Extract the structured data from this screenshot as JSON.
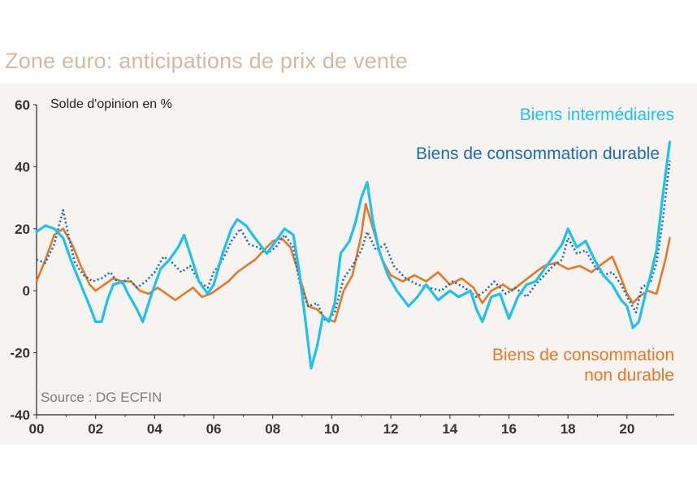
{
  "title": "Zone euro: anticipations de prix de vente",
  "ylabel": "Solde d'opinion en %",
  "source": "Source : DG ECFIN",
  "labels": {
    "intermediaires": "Biens intermédiaires",
    "durable": "Biens de consommation durable",
    "non_durable_line1": "Biens de consommation",
    "non_durable_line2": "non durable"
  },
  "colors": {
    "intermediaires": "#1ec2ee",
    "durable": "#1a6cb8",
    "non_durable": "#e4792a",
    "title": "#d7b8a0",
    "panel": "#f7f3f0"
  },
  "chart_data": {
    "type": "line",
    "title": "Zone euro: anticipations de prix de vente",
    "ylabel": "Solde d'opinion en %",
    "xlabel": "",
    "xlim": [
      2000,
      2021.6
    ],
    "ylim": [
      -40,
      60
    ],
    "xticks": [
      "00",
      "02",
      "04",
      "06",
      "08",
      "10",
      "12",
      "14",
      "16",
      "18",
      "20"
    ],
    "yticks": [
      "60",
      "40",
      "20",
      "0",
      "-20",
      "-40"
    ],
    "series": [
      {
        "name": "Biens intermédiaires",
        "style": "solid",
        "points": [
          [
            2000.0,
            19
          ],
          [
            2000.3,
            21
          ],
          [
            2000.6,
            20
          ],
          [
            2000.9,
            17
          ],
          [
            2001.2,
            9
          ],
          [
            2001.5,
            2
          ],
          [
            2001.8,
            -5
          ],
          [
            2002.0,
            -10
          ],
          [
            2002.2,
            -10
          ],
          [
            2002.4,
            -3
          ],
          [
            2002.6,
            2
          ],
          [
            2002.9,
            3
          ],
          [
            2003.1,
            -1
          ],
          [
            2003.4,
            -6
          ],
          [
            2003.6,
            -10
          ],
          [
            2003.9,
            -1
          ],
          [
            2004.2,
            7
          ],
          [
            2004.5,
            10
          ],
          [
            2004.8,
            14
          ],
          [
            2005.0,
            18
          ],
          [
            2005.2,
            12
          ],
          [
            2005.5,
            3
          ],
          [
            2005.8,
            -1
          ],
          [
            2006.0,
            2
          ],
          [
            2006.3,
            12
          ],
          [
            2006.6,
            20
          ],
          [
            2006.8,
            23
          ],
          [
            2007.1,
            21
          ],
          [
            2007.4,
            17
          ],
          [
            2007.8,
            12
          ],
          [
            2008.1,
            16
          ],
          [
            2008.4,
            20
          ],
          [
            2008.7,
            18
          ],
          [
            2008.9,
            6
          ],
          [
            2009.1,
            -9
          ],
          [
            2009.3,
            -25
          ],
          [
            2009.5,
            -18
          ],
          [
            2009.7,
            -8
          ],
          [
            2009.9,
            -10
          ],
          [
            2010.1,
            -4
          ],
          [
            2010.3,
            12
          ],
          [
            2010.6,
            16
          ],
          [
            2010.8,
            22
          ],
          [
            2011.0,
            30
          ],
          [
            2011.2,
            35
          ],
          [
            2011.4,
            22
          ],
          [
            2011.6,
            13
          ],
          [
            2011.9,
            5
          ],
          [
            2012.2,
            0
          ],
          [
            2012.6,
            -5
          ],
          [
            2012.9,
            -2
          ],
          [
            2013.2,
            2
          ],
          [
            2013.6,
            -3
          ],
          [
            2014.0,
            0
          ],
          [
            2014.3,
            -2
          ],
          [
            2014.7,
            0
          ],
          [
            2014.9,
            -6
          ],
          [
            2015.1,
            -10
          ],
          [
            2015.4,
            -2
          ],
          [
            2015.7,
            -1
          ],
          [
            2016.0,
            -9
          ],
          [
            2016.3,
            -2
          ],
          [
            2016.6,
            2
          ],
          [
            2016.9,
            3
          ],
          [
            2017.2,
            7
          ],
          [
            2017.5,
            11
          ],
          [
            2017.8,
            15
          ],
          [
            2018.0,
            20
          ],
          [
            2018.3,
            14
          ],
          [
            2018.6,
            16
          ],
          [
            2018.9,
            10
          ],
          [
            2019.2,
            5
          ],
          [
            2019.5,
            2
          ],
          [
            2019.8,
            -3
          ],
          [
            2020.0,
            -5
          ],
          [
            2020.2,
            -12
          ],
          [
            2020.4,
            -10
          ],
          [
            2020.6,
            -2
          ],
          [
            2020.8,
            5
          ],
          [
            2021.0,
            13
          ],
          [
            2021.2,
            30
          ],
          [
            2021.45,
            48
          ]
        ]
      },
      {
        "name": "Biens de consommation durable",
        "style": "dotted",
        "points": [
          [
            2000.0,
            10
          ],
          [
            2000.3,
            9
          ],
          [
            2000.6,
            15
          ],
          [
            2000.9,
            26
          ],
          [
            2001.1,
            17
          ],
          [
            2001.3,
            9
          ],
          [
            2001.6,
            5
          ],
          [
            2001.9,
            3
          ],
          [
            2002.2,
            4
          ],
          [
            2002.5,
            6
          ],
          [
            2002.8,
            2
          ],
          [
            2003.1,
            4
          ],
          [
            2003.4,
            1
          ],
          [
            2003.7,
            3
          ],
          [
            2004.0,
            6
          ],
          [
            2004.3,
            11
          ],
          [
            2004.6,
            9
          ],
          [
            2004.9,
            6
          ],
          [
            2005.2,
            8
          ],
          [
            2005.5,
            3
          ],
          [
            2005.8,
            1
          ],
          [
            2006.0,
            6
          ],
          [
            2006.3,
            10
          ],
          [
            2006.6,
            16
          ],
          [
            2006.9,
            20
          ],
          [
            2007.2,
            15
          ],
          [
            2007.5,
            14
          ],
          [
            2007.8,
            12
          ],
          [
            2008.1,
            14
          ],
          [
            2008.4,
            18
          ],
          [
            2008.7,
            14
          ],
          [
            2008.9,
            3
          ],
          [
            2009.2,
            -5
          ],
          [
            2009.5,
            -4
          ],
          [
            2009.8,
            -10
          ],
          [
            2010.1,
            -7
          ],
          [
            2010.4,
            4
          ],
          [
            2010.7,
            8
          ],
          [
            2011.0,
            13
          ],
          [
            2011.2,
            19
          ],
          [
            2011.5,
            13
          ],
          [
            2011.8,
            15
          ],
          [
            2012.1,
            8
          ],
          [
            2012.5,
            4
          ],
          [
            2012.9,
            2
          ],
          [
            2013.3,
            1
          ],
          [
            2013.7,
            0
          ],
          [
            2014.1,
            3
          ],
          [
            2014.5,
            1
          ],
          [
            2014.9,
            -2
          ],
          [
            2015.2,
            0
          ],
          [
            2015.5,
            3
          ],
          [
            2015.9,
            -1
          ],
          [
            2016.2,
            1
          ],
          [
            2016.6,
            -2
          ],
          [
            2016.9,
            2
          ],
          [
            2017.2,
            5
          ],
          [
            2017.5,
            8
          ],
          [
            2017.8,
            10
          ],
          [
            2018.0,
            17
          ],
          [
            2018.3,
            12
          ],
          [
            2018.6,
            13
          ],
          [
            2018.9,
            8
          ],
          [
            2019.2,
            5
          ],
          [
            2019.5,
            6
          ],
          [
            2019.8,
            2
          ],
          [
            2020.0,
            -2
          ],
          [
            2020.3,
            -7
          ],
          [
            2020.5,
            1
          ],
          [
            2020.8,
            3
          ],
          [
            2021.0,
            9
          ],
          [
            2021.2,
            22
          ],
          [
            2021.45,
            42
          ]
        ]
      },
      {
        "name": "Biens de consommation non durable",
        "style": "solid",
        "points": [
          [
            2000.0,
            3
          ],
          [
            2000.3,
            10
          ],
          [
            2000.6,
            18
          ],
          [
            2000.9,
            20
          ],
          [
            2001.2,
            15
          ],
          [
            2001.5,
            8
          ],
          [
            2001.8,
            2
          ],
          [
            2002.0,
            0
          ],
          [
            2002.3,
            2
          ],
          [
            2002.6,
            4
          ],
          [
            2002.9,
            3
          ],
          [
            2003.2,
            3
          ],
          [
            2003.5,
            0
          ],
          [
            2003.8,
            -1
          ],
          [
            2004.1,
            1
          ],
          [
            2004.4,
            -1
          ],
          [
            2004.7,
            -3
          ],
          [
            2005.0,
            -1
          ],
          [
            2005.3,
            1
          ],
          [
            2005.6,
            -2
          ],
          [
            2005.9,
            -1
          ],
          [
            2006.2,
            1
          ],
          [
            2006.5,
            3
          ],
          [
            2006.8,
            6
          ],
          [
            2007.1,
            8
          ],
          [
            2007.4,
            10
          ],
          [
            2007.7,
            13
          ],
          [
            2008.0,
            16
          ],
          [
            2008.3,
            17
          ],
          [
            2008.6,
            14
          ],
          [
            2008.9,
            5
          ],
          [
            2009.2,
            -5
          ],
          [
            2009.5,
            -6
          ],
          [
            2009.8,
            -9
          ],
          [
            2010.1,
            -10
          ],
          [
            2010.4,
            0
          ],
          [
            2010.7,
            5
          ],
          [
            2011.0,
            18
          ],
          [
            2011.15,
            28
          ],
          [
            2011.4,
            20
          ],
          [
            2011.7,
            10
          ],
          [
            2012.0,
            5
          ],
          [
            2012.4,
            3
          ],
          [
            2012.8,
            5
          ],
          [
            2013.2,
            3
          ],
          [
            2013.6,
            6
          ],
          [
            2014.0,
            2
          ],
          [
            2014.4,
            4
          ],
          [
            2014.8,
            1
          ],
          [
            2015.1,
            -4
          ],
          [
            2015.4,
            0
          ],
          [
            2015.8,
            2
          ],
          [
            2016.1,
            0
          ],
          [
            2016.5,
            3
          ],
          [
            2016.9,
            6
          ],
          [
            2017.2,
            8
          ],
          [
            2017.6,
            9
          ],
          [
            2018.0,
            7
          ],
          [
            2018.4,
            8
          ],
          [
            2018.8,
            6
          ],
          [
            2019.2,
            9
          ],
          [
            2019.5,
            11
          ],
          [
            2019.8,
            4
          ],
          [
            2020.0,
            -1
          ],
          [
            2020.2,
            -4
          ],
          [
            2020.4,
            -2
          ],
          [
            2020.7,
            0
          ],
          [
            2021.0,
            -1
          ],
          [
            2021.3,
            10
          ],
          [
            2021.45,
            17
          ]
        ]
      }
    ]
  }
}
